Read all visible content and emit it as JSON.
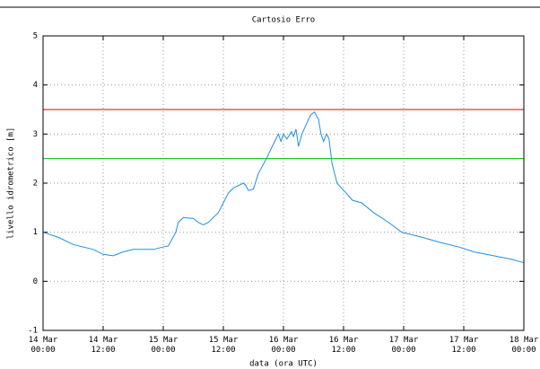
{
  "chart_data": {
    "type": "line",
    "title": "Cartosio Erro",
    "xlabel": "data (ora UTC)",
    "ylabel": "livello idrometrico [m]",
    "x": [
      0,
      3,
      6,
      10,
      12,
      14,
      16,
      18,
      22,
      24,
      25,
      26.5,
      27,
      28,
      30,
      31,
      32,
      33,
      35,
      37,
      38,
      40,
      40.5,
      41,
      42,
      43,
      44.6,
      46,
      47,
      47.5,
      48,
      48.7,
      49.6,
      50,
      50.5,
      51,
      51.7,
      53,
      53.5,
      54.2,
      55,
      55.5,
      56,
      56.6,
      57.1,
      57.7,
      58.7,
      60.5,
      61.8,
      63.6,
      66,
      69,
      71.6,
      75.6,
      79,
      83,
      86,
      91,
      93.5,
      96
    ],
    "series": [
      {
        "name": "livello",
        "color": "#1e8fe6",
        "values": [
          1.0,
          0.9,
          0.75,
          0.65,
          0.55,
          0.52,
          0.6,
          0.65,
          0.65,
          0.7,
          0.72,
          1.0,
          1.2,
          1.3,
          1.28,
          1.2,
          1.15,
          1.2,
          1.4,
          1.8,
          1.9,
          2.0,
          1.95,
          1.85,
          1.88,
          2.2,
          2.5,
          2.8,
          3.0,
          2.85,
          3.0,
          2.9,
          3.05,
          2.95,
          3.1,
          2.75,
          3.0,
          3.3,
          3.4,
          3.45,
          3.3,
          3.0,
          2.85,
          3.0,
          2.9,
          2.4,
          2.0,
          1.8,
          1.65,
          1.6,
          1.4,
          1.2,
          1.0,
          0.9,
          0.8,
          0.7,
          0.6,
          0.5,
          0.45,
          0.38
        ]
      }
    ],
    "hlines": [
      {
        "value": 3.5,
        "color": "#e00000"
      },
      {
        "value": 2.5,
        "color": "#00c000"
      }
    ],
    "xlim": [
      0,
      96
    ],
    "xticks": [
      {
        "value": 0,
        "label": "14 Mar\n00:00"
      },
      {
        "value": 12,
        "label": "14 Mar\n12:00"
      },
      {
        "value": 24,
        "label": "15 Mar\n00:00"
      },
      {
        "value": 36,
        "label": "15 Mar\n12:00"
      },
      {
        "value": 48,
        "label": "16 Mar\n00:00"
      },
      {
        "value": 60,
        "label": "16 Mar\n12:00"
      },
      {
        "value": 72,
        "label": "17 Mar\n00:00"
      },
      {
        "value": 84,
        "label": "17 Mar\n12:00"
      },
      {
        "value": 96,
        "label": "18 Mar\n00:00"
      }
    ],
    "ylim": [
      -1,
      5
    ],
    "yticks": [
      -1,
      0,
      1,
      2,
      3,
      4,
      5
    ],
    "grid": true
  }
}
